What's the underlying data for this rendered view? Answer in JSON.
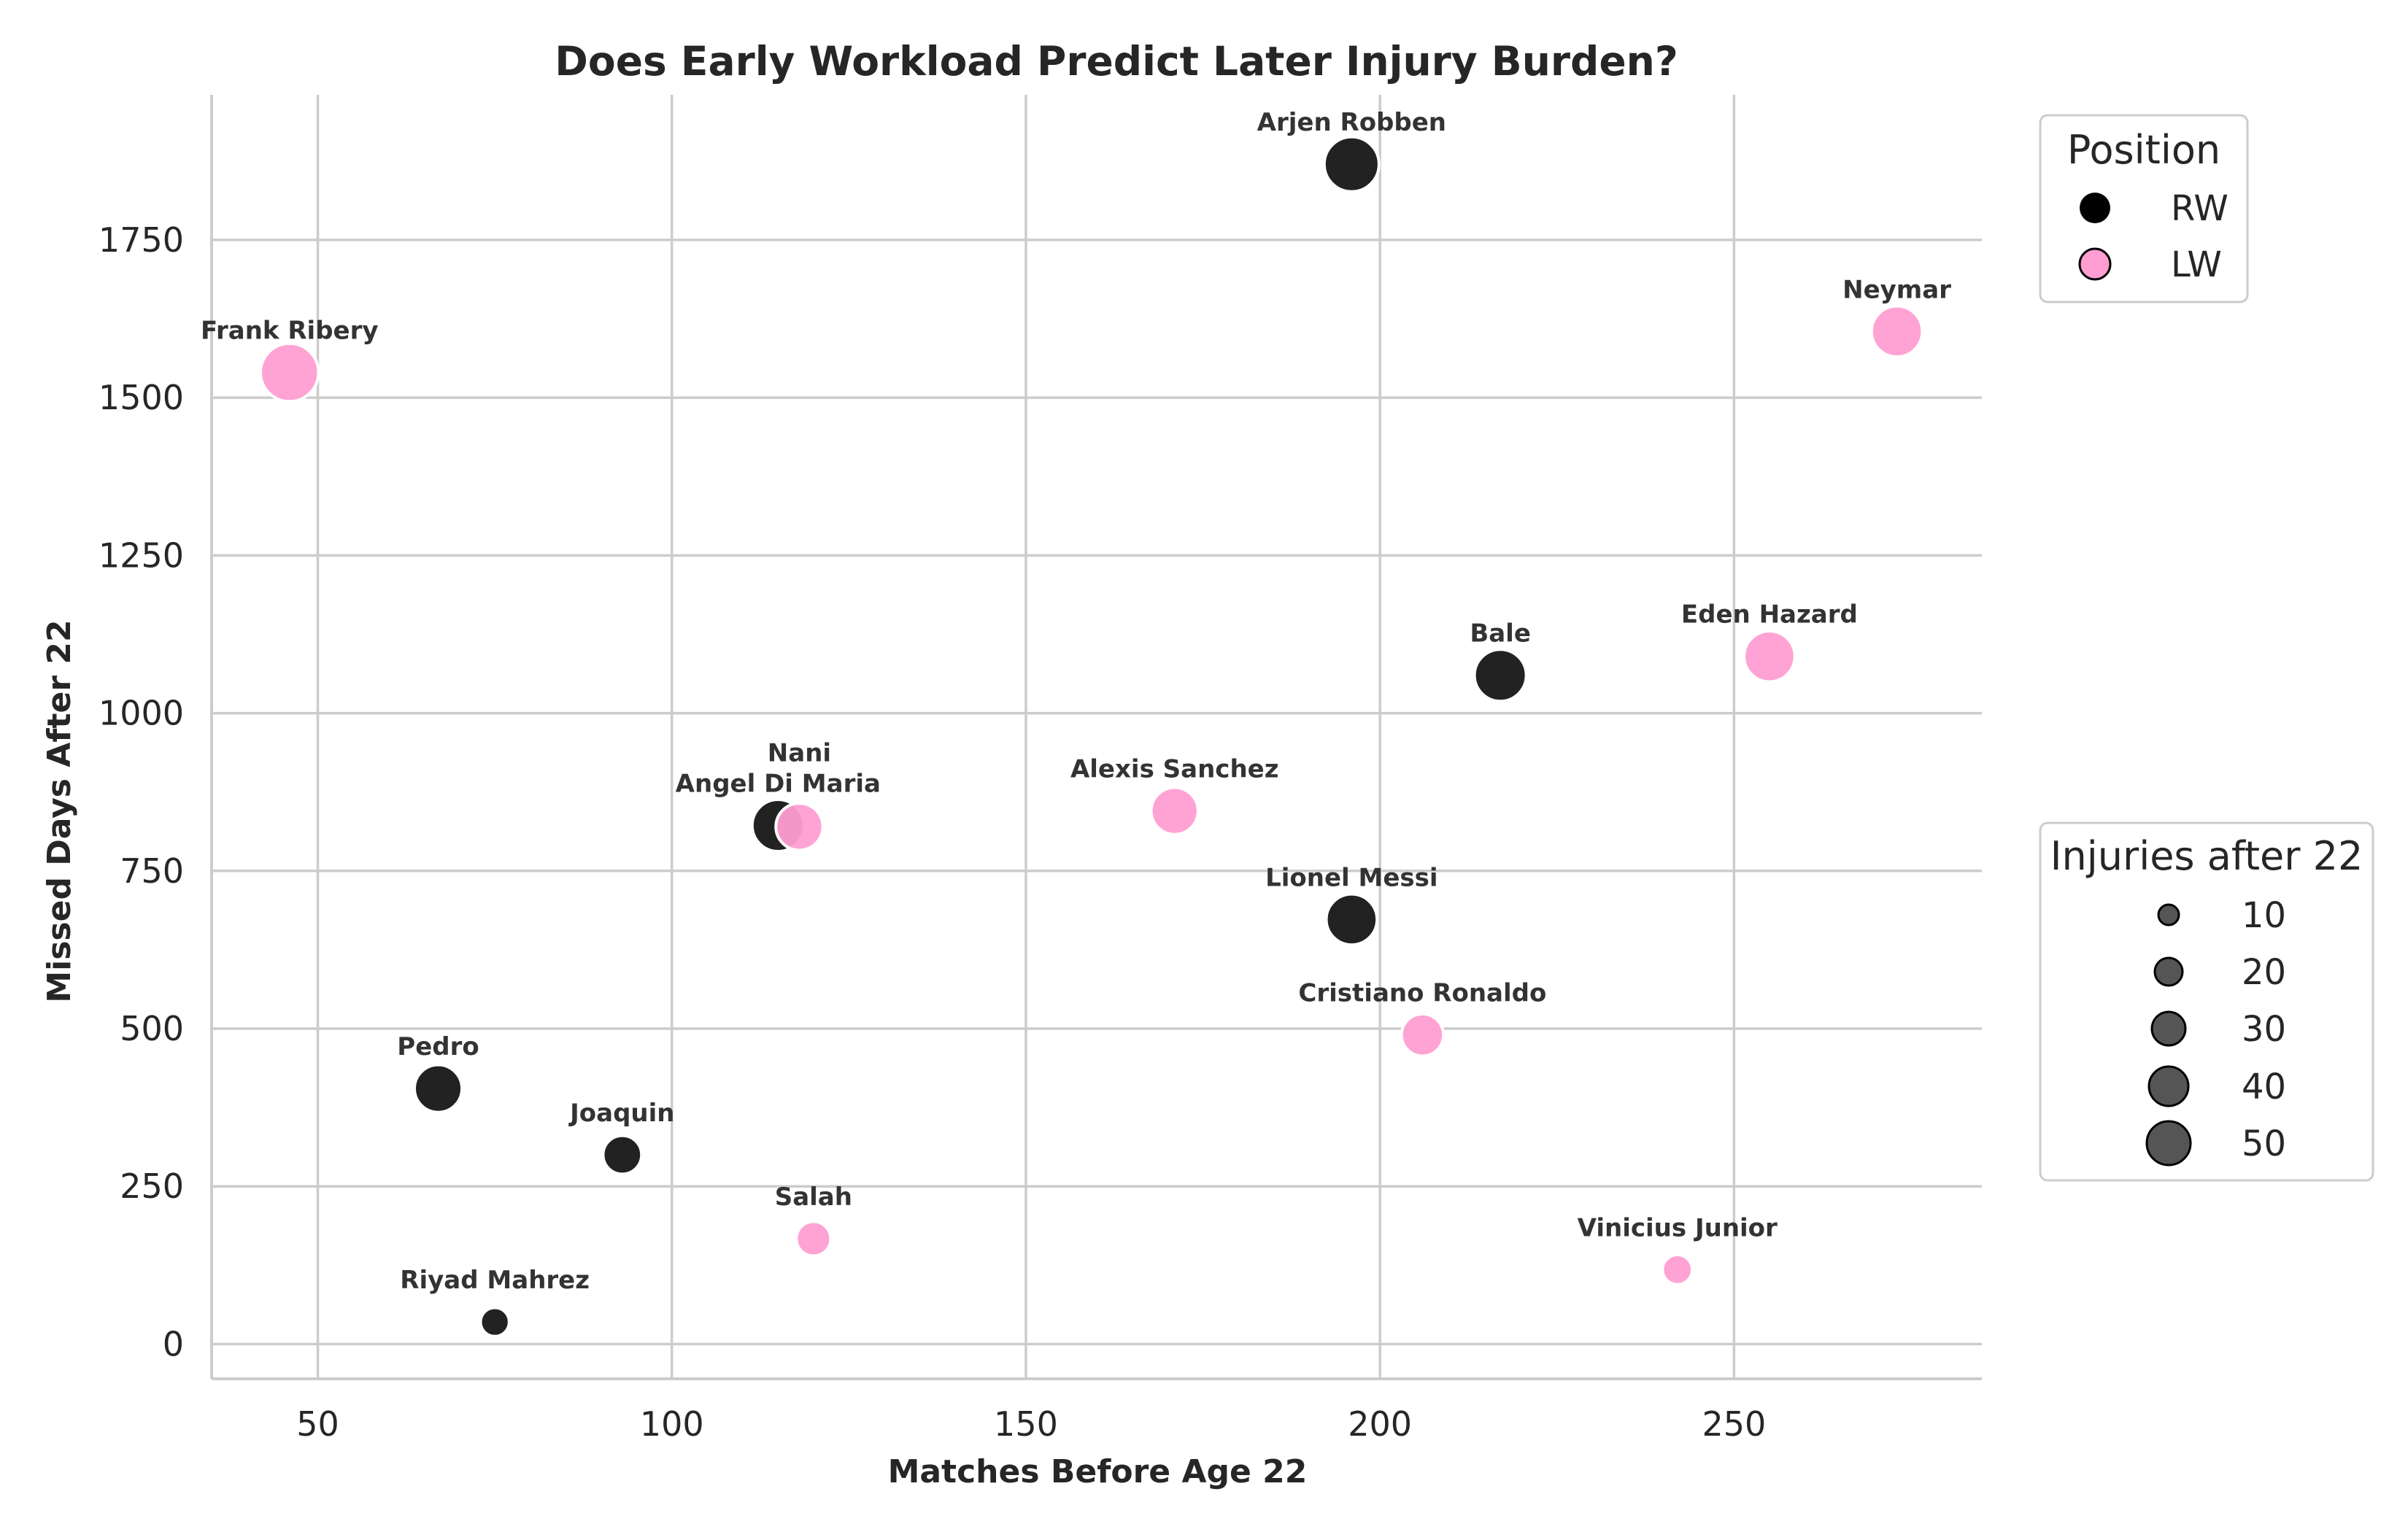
{
  "chart_data": {
    "type": "scatter",
    "title": "Does Early Workload Predict Later Injury Burden?",
    "xlabel": "Matches Before Age 22",
    "ylabel": "Missed Days After 22",
    "xlim": [
      35,
      285
    ],
    "ylim": [
      -55,
      1980
    ],
    "xticks": [
      50,
      100,
      150,
      200,
      250
    ],
    "yticks": [
      0,
      250,
      500,
      750,
      1000,
      1250,
      1500,
      1750
    ],
    "grid": true,
    "colors": {
      "RW": "#222222",
      "LW": "#ff9ed2"
    },
    "points": [
      {
        "name": "Arjen Robben",
        "position": "RW",
        "matches": 196,
        "missed_days": 1870,
        "injuries": 48
      },
      {
        "name": "Neymar",
        "position": "LW",
        "matches": 273,
        "missed_days": 1605,
        "injuries": 40
      },
      {
        "name": "Frank Ribery",
        "position": "LW",
        "matches": 46,
        "missed_days": 1540,
        "injuries": 55
      },
      {
        "name": "Bale",
        "position": "RW",
        "matches": 217,
        "missed_days": 1060,
        "injuries": 42
      },
      {
        "name": "Eden Hazard",
        "position": "LW",
        "matches": 255,
        "missed_days": 1090,
        "injuries": 40
      },
      {
        "name": "Alexis Sanchez",
        "position": "LW",
        "matches": 171,
        "missed_days": 845,
        "injuries": 33
      },
      {
        "name": "Angel Di Maria",
        "position": "RW",
        "matches": 115,
        "missed_days": 822,
        "injuries": 42
      },
      {
        "name": "Nani",
        "position": "LW",
        "matches": 118,
        "missed_days": 820,
        "injuries": 33
      },
      {
        "name": "Lionel Messi",
        "position": "RW",
        "matches": 196,
        "missed_days": 673,
        "injuries": 40
      },
      {
        "name": "Cristiano Ronaldo",
        "position": "LW",
        "matches": 206,
        "missed_days": 490,
        "injuries": 25
      },
      {
        "name": "Pedro",
        "position": "RW",
        "matches": 67,
        "missed_days": 405,
        "injuries": 34
      },
      {
        "name": "Joaquin",
        "position": "RW",
        "matches": 93,
        "missed_days": 300,
        "injuries": 20
      },
      {
        "name": "Salah",
        "position": "LW",
        "matches": 120,
        "missed_days": 167,
        "injuries": 15
      },
      {
        "name": "Vinicius Junior",
        "position": "LW",
        "matches": 242,
        "missed_days": 118,
        "injuries": 10
      },
      {
        "name": "Riyad Mahrez",
        "position": "RW",
        "matches": 75,
        "missed_days": 35,
        "injuries": 9
      }
    ],
    "legend_position": {
      "title": "Position",
      "entries": [
        "RW",
        "LW"
      ],
      "placement": "upper right outside"
    },
    "legend_size": {
      "title": "Injuries after 22",
      "entries": [
        10,
        20,
        30,
        40,
        50
      ],
      "placement": "lower right outside"
    }
  }
}
